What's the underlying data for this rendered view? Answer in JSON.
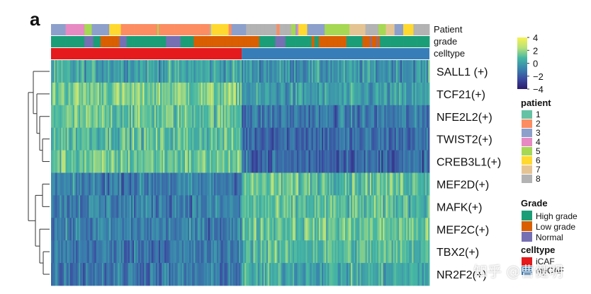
{
  "panel_label": "a",
  "watermark": "知乎 @曹健明",
  "chart_data": {
    "type": "heatmap",
    "title": "",
    "annotation_tracks": [
      "Patient",
      "grade",
      "celltype"
    ],
    "rows": [
      "SALL1 (+)",
      "TCF21(+)",
      "NFE2L2(+)",
      "TWIST2(+)",
      "CREB3L1(+)",
      "MEF2D(+)",
      "MAFK(+)",
      "MEF2C(+)",
      "TBX2(+)",
      "NR2F2(+)"
    ],
    "column_groups": [
      {
        "celltype": "iCAF",
        "fraction": 0.505
      },
      {
        "celltype": "myCAF",
        "fraction": 0.495
      }
    ],
    "row_group_means": [
      [
        0.2,
        -0.3
      ],
      [
        1.6,
        -0.2
      ],
      [
        1.2,
        -1.2
      ],
      [
        1.0,
        -1.5
      ],
      [
        1.3,
        -1.6
      ],
      [
        -1.0,
        1.2
      ],
      [
        -0.9,
        0.9
      ],
      [
        -1.0,
        1.3
      ],
      [
        -1.2,
        0.9
      ],
      [
        -1.1,
        0.3
      ]
    ],
    "color_scale": {
      "min": -4,
      "max": 4,
      "ticks": [
        "4",
        "2",
        "0",
        "−2",
        "−4"
      ],
      "colors": [
        "#2b1b6d",
        "#3b4ba0",
        "#3a86ad",
        "#45b7a3",
        "#b7e17a",
        "#f7f252"
      ]
    },
    "legends": {
      "patient": {
        "title": "patient",
        "items": [
          {
            "label": "1",
            "color": "#66c2a5"
          },
          {
            "label": "2",
            "color": "#fc8d62"
          },
          {
            "label": "3",
            "color": "#8da0cb"
          },
          {
            "label": "4",
            "color": "#e78ac3"
          },
          {
            "label": "5",
            "color": "#a6d854"
          },
          {
            "label": "6",
            "color": "#ffd92f"
          },
          {
            "label": "7",
            "color": "#e5c494"
          },
          {
            "label": "8",
            "color": "#b3b3b3"
          }
        ]
      },
      "grade": {
        "title": "Grade",
        "items": [
          {
            "label": "High grade",
            "color": "#1b9e77"
          },
          {
            "label": "Low grade",
            "color": "#d95f02"
          },
          {
            "label": "Normal",
            "color": "#7570b3"
          }
        ]
      },
      "celltype": {
        "title": "celltype",
        "items": [
          {
            "label": "iCAF",
            "color": "#e41a1c"
          },
          {
            "label": "myCAF",
            "color": "#377eb8"
          }
        ]
      }
    }
  }
}
